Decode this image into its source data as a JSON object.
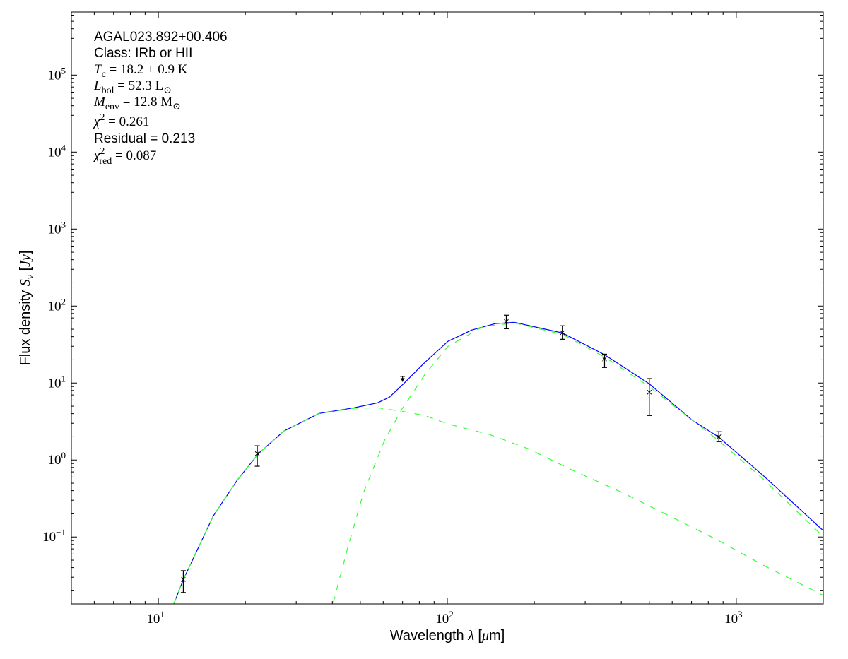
{
  "chart_data": {
    "type": "line",
    "xlabel": {
      "pre": "Wavelength ",
      "sym": "λ",
      "post": " [",
      "unit_sym": "μ",
      "unit": "m]"
    },
    "ylabel": {
      "pre": "Flux density ",
      "sym": "S",
      "sub": "ν",
      "post": " [",
      "unit_sym": "Jy",
      "close": "]"
    },
    "x_scale": "log",
    "y_scale": "log",
    "xlim": [
      5,
      2000
    ],
    "ylim": [
      0.0135,
      660000
    ],
    "grid": false,
    "x_ticks": [
      {
        "base": "10",
        "exp": "1",
        "value": 10
      },
      {
        "base": "10",
        "exp": "2",
        "value": 100
      },
      {
        "base": "10",
        "exp": "3",
        "value": 1000
      }
    ],
    "y_ticks": [
      {
        "base": "10",
        "exp": "−1",
        "value": 0.1
      },
      {
        "base": "10",
        "exp": "0",
        "value": 1
      },
      {
        "base": "10",
        "exp": "1",
        "value": 10
      },
      {
        "base": "10",
        "exp": "2",
        "value": 100
      },
      {
        "base": "10",
        "exp": "3",
        "value": 1000
      },
      {
        "base": "10",
        "exp": "4",
        "value": 10000
      },
      {
        "base": "10",
        "exp": "5",
        "value": 100000
      }
    ],
    "annotations": [
      [
        {
          "t": "AGAL023.892+00.406",
          "f": "sans"
        }
      ],
      [
        {
          "t": "Class: IRb or HII",
          "f": "sans"
        }
      ],
      [
        {
          "t": "T",
          "f": "i"
        },
        {
          "t": "c",
          "f": "sub"
        },
        {
          "t": " = 18.2 ± 0.9 K",
          "f": "serif"
        }
      ],
      [
        {
          "t": "L",
          "f": "i"
        },
        {
          "t": "bol",
          "f": "sub"
        },
        {
          "t": " = 52.3 L",
          "f": "serif"
        },
        {
          "t": "⊙",
          "f": "sub"
        }
      ],
      [
        {
          "t": "M",
          "f": "i"
        },
        {
          "t": "env",
          "f": "sub"
        },
        {
          "t": " = 12.8 M",
          "f": "serif"
        },
        {
          "t": "⊙",
          "f": "sub"
        }
      ],
      [
        {
          "t": "χ",
          "f": "i"
        },
        {
          "t": "2",
          "f": "sup"
        },
        {
          "t": " = 0.261",
          "f": "serif"
        }
      ],
      [
        {
          "t": "Residual = 0.213",
          "f": "sans"
        }
      ],
      [
        {
          "t": "χ",
          "f": "i"
        },
        {
          "t": "2",
          "f": "sup"
        },
        {
          "t": "red",
          "f": "subafter"
        },
        {
          "t": " = 0.087",
          "f": "serif"
        }
      ]
    ],
    "colors": {
      "total": "#0000ff",
      "components": "#33ff33",
      "points": "#000000"
    },
    "observations": [
      {
        "x": 12.2,
        "y": 0.028,
        "ylow": 0.019,
        "yhigh": 0.0365,
        "upper_limit": false
      },
      {
        "x": 22,
        "y": 1.21,
        "ylow": 0.83,
        "yhigh": 1.53,
        "upper_limit": false
      },
      {
        "x": 70,
        "y": 10.4,
        "ylow": 10.4,
        "yhigh": 12.2,
        "upper_limit": true
      },
      {
        "x": 160,
        "y": 62.8,
        "ylow": 50.7,
        "yhigh": 76,
        "upper_limit": false
      },
      {
        "x": 250,
        "y": 45,
        "ylow": 37,
        "yhigh": 55.4,
        "upper_limit": false
      },
      {
        "x": 350,
        "y": 20.5,
        "ylow": 15.9,
        "yhigh": 23.7,
        "upper_limit": false
      },
      {
        "x": 500,
        "y": 7.6,
        "ylow": 3.78,
        "yhigh": 11.4,
        "upper_limit": false
      },
      {
        "x": 870,
        "y": 2.0,
        "ylow": 1.73,
        "yhigh": 2.33,
        "upper_limit": false
      }
    ],
    "series": [
      {
        "style": "solid",
        "color": "#0000ff",
        "points": [
          [
            11.3,
            0.0134
          ],
          [
            12.2,
            0.028
          ],
          [
            15.5,
            0.188
          ],
          [
            18.7,
            0.54
          ],
          [
            22.2,
            1.21
          ],
          [
            27.2,
            2.38
          ],
          [
            36,
            4.03
          ],
          [
            47.6,
            4.77
          ],
          [
            57.4,
            5.53
          ],
          [
            63.1,
            6.56
          ],
          [
            70.6,
            9.8
          ],
          [
            83.6,
            18.5
          ],
          [
            100.5,
            34.8
          ],
          [
            121.6,
            48.8
          ],
          [
            146.5,
            59
          ],
          [
            170.5,
            61.5
          ],
          [
            250,
            44.8
          ],
          [
            350,
            23.3
          ],
          [
            499,
            9.8
          ],
          [
            706,
            3.26
          ],
          [
            865,
            2.01
          ],
          [
            1240,
            0.628
          ],
          [
            1985,
            0.124
          ]
        ]
      },
      {
        "style": "dashed",
        "color": "#33ff33",
        "points": [
          [
            40.3,
            0.014
          ],
          [
            45.1,
            0.07
          ],
          [
            51.3,
            0.378
          ],
          [
            60.7,
            1.81
          ],
          [
            69.4,
            4.48
          ],
          [
            83.6,
            12.9
          ],
          [
            100.5,
            30
          ],
          [
            133,
            54.2
          ],
          [
            170.5,
            60.3
          ],
          [
            250,
            43
          ],
          [
            350,
            21.8
          ],
          [
            499,
            9.0
          ],
          [
            865,
            1.81
          ],
          [
            1240,
            0.565
          ],
          [
            1985,
            0.104
          ]
        ]
      },
      {
        "style": "dashed",
        "color": "#33ff33",
        "points": [
          [
            11.3,
            0.0134
          ],
          [
            12.2,
            0.028
          ],
          [
            15.5,
            0.188
          ],
          [
            18.7,
            0.54
          ],
          [
            22.2,
            1.21
          ],
          [
            27.2,
            2.38
          ],
          [
            36,
            4.0
          ],
          [
            47.6,
            4.7
          ],
          [
            57.4,
            4.77
          ],
          [
            69.4,
            4.3
          ],
          [
            83.6,
            3.78
          ],
          [
            100.5,
            2.94
          ],
          [
            140,
            2.14
          ],
          [
            190.5,
            1.4
          ],
          [
            276,
            0.713
          ],
          [
            403,
            0.378
          ],
          [
            586,
            0.188
          ],
          [
            849,
            0.094
          ],
          [
            1240,
            0.043
          ],
          [
            1985,
            0.0177
          ]
        ]
      }
    ]
  }
}
